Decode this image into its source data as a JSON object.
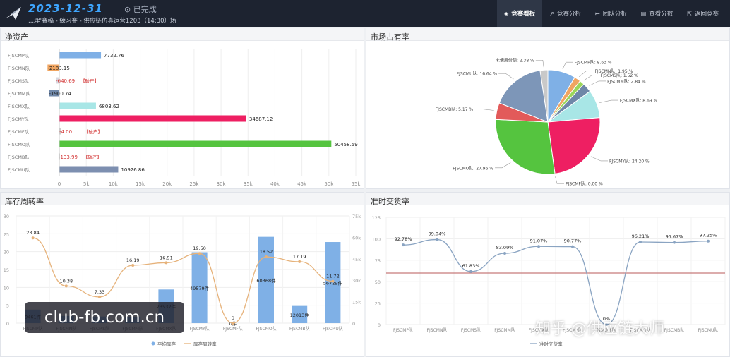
{
  "header": {
    "date": "2023-12-31",
    "status": "已完成",
    "subtitle": "...理'賽稿 - 練习賽 - 供应链仿真运营1203（14:30）场"
  },
  "nav": [
    {
      "label": "竞赛看板",
      "icon": "dashboard-icon",
      "active": true
    },
    {
      "label": "竞赛分析",
      "icon": "trend-icon",
      "active": false
    },
    {
      "label": "团队分析",
      "icon": "team-icon",
      "active": false
    },
    {
      "label": "查看分数",
      "icon": "score-icon",
      "active": false
    },
    {
      "label": "返回竞赛",
      "icon": "back-icon",
      "active": false
    }
  ],
  "panels": {
    "net_assets": "净资产",
    "market_share": "市场占有率",
    "inventory_turnover": "库存周转率",
    "on_time": "准时交货率"
  },
  "chart_data": [
    {
      "type": "bar",
      "orientation": "horizontal",
      "title": "净资产",
      "categories": [
        "FJSCMP队",
        "FJSCMN队",
        "FJSCMS队",
        "FJSCMM队",
        "FJSCMX队",
        "FJSCMY队",
        "FJSCMF队",
        "FJSCMO队",
        "FJSCMB队",
        "FJSCMU队"
      ],
      "values": [
        7732.76,
        -2183.15,
        -640.69,
        -1900.74,
        6803.62,
        34687.12,
        -4.0,
        50458.59,
        -133.99,
        10926.86
      ],
      "value_labels": [
        "7732.76",
        "-2183.15",
        "-640.69",
        "-1900.74",
        "6803.62",
        "34687.12",
        "-4.00",
        "50458.59",
        "-133.99",
        "10926.86"
      ],
      "bankrupt_label": "【破产】",
      "bankrupt": [
        false,
        false,
        true,
        false,
        false,
        false,
        true,
        false,
        true,
        false
      ],
      "colors": [
        "#7fb0e6",
        "#f0a561",
        "#d8d8e0",
        "#6f87a8",
        "#a8e6e6",
        "#ee1f62",
        "#cccccc",
        "#55c43f",
        "#cccccc",
        "#7d8fb0"
      ],
      "xlim": [
        0,
        55000
      ],
      "ticks": [
        "0",
        "5k",
        "10k",
        "15k",
        "20k",
        "25k",
        "30k",
        "35k",
        "40k",
        "45k",
        "50k",
        "55k"
      ]
    },
    {
      "type": "pie",
      "title": "市场占有率",
      "slices": [
        {
          "label": "FJSCMP队: 8.63 %",
          "value": 8.63,
          "color": "#7fb0e6"
        },
        {
          "label": "FJSCMN队: 1.95 %",
          "value": 1.95,
          "color": "#f0a561"
        },
        {
          "label": "FJSCMS队: 1.52 %",
          "value": 1.52,
          "color": "#9bd65a"
        },
        {
          "label": "FJSCMM队: 2.84 %",
          "value": 2.84,
          "color": "#6f87a8"
        },
        {
          "label": "FJSCMX队: 8.69 %",
          "value": 8.69,
          "color": "#a8e6e6"
        },
        {
          "label": "FJSCMY队: 24.20 %",
          "value": 24.2,
          "color": "#ee1f62"
        },
        {
          "label": "FJSCMF队: 0.00 %",
          "value": 0.0,
          "color": "#cccccc"
        },
        {
          "label": "FJSCMO队: 27.96 %",
          "value": 27.96,
          "color": "#55c43f"
        },
        {
          "label": "FJSCMB队: 5.17 %",
          "value": 5.17,
          "color": "#e25a5a"
        },
        {
          "label": "FJSCMU队: 16.64 %",
          "value": 16.64,
          "color": "#7d96b8"
        },
        {
          "label": "未使用份额: 2.38 %",
          "value": 2.38,
          "color": "#c9c9c9"
        }
      ]
    },
    {
      "type": "bar-line",
      "title": "库存周转率",
      "categories": [
        "FJSCMP队",
        "FJSCMN队",
        "FJSCMS队",
        "FJSCMM队",
        "FJSCMX队",
        "FJSCMY队",
        "FJSCMF队",
        "FJSCMO队",
        "FJSCMB队",
        "FJSCMU队"
      ],
      "series": [
        {
          "name": "平均库存",
          "values": [
            9461,
            5000,
            4600,
            4300,
            23532,
            49579,
            0,
            60368,
            12013,
            56729
          ],
          "labels": [
            "9461件",
            "",
            "",
            "",
            "23532件",
            "49579件",
            "0件",
            "60368件",
            "12013件",
            "56729件"
          ],
          "axis": "right"
        },
        {
          "name": "库存周转率",
          "values": [
            23.84,
            10.38,
            7.33,
            16.19,
            16.91,
            19.5,
            0,
            18.52,
            17.19,
            11.72
          ],
          "labels": [
            "23.84",
            "10.38",
            "7.33",
            "16.19",
            "16.91",
            "19.50",
            "0",
            "18.52",
            "17.19",
            "11.72"
          ],
          "axis": "left"
        }
      ],
      "left_ticks": [
        "0",
        "5",
        "10",
        "15",
        "20",
        "25",
        "30"
      ],
      "right_ticks": [
        "0",
        "15k",
        "30k",
        "45k",
        "60k",
        "75k"
      ],
      "left_ylim": [
        0,
        30
      ],
      "right_ylim": [
        0,
        75000
      ]
    },
    {
      "type": "line",
      "title": "准时交货率",
      "categories": [
        "FJSCMP队",
        "FJSCMN队",
        "FJSCMS队",
        "FJSCMM队",
        "FJSCMX队",
        "FJSCMY队",
        "FJSCMF队",
        "FJSCMO队",
        "FJSCMB队",
        "FJSCMU队"
      ],
      "series": [
        {
          "name": "准时交货率",
          "values": [
            92.78,
            99.04,
            61.83,
            83.09,
            91.07,
            90.77,
            0,
            96.21,
            95.67,
            97.25
          ],
          "labels": [
            "92.78%",
            "99.04%",
            "61.83%",
            "83.09%",
            "91.07%",
            "90.77%",
            "0%",
            "96.21%",
            "95.67%",
            "97.25%"
          ]
        }
      ],
      "reference_line": 60,
      "ticks": [
        "0",
        "25",
        "50",
        "75",
        "100",
        "125"
      ],
      "ylim": [
        0,
        125
      ]
    }
  ],
  "watermarks": {
    "left": "club-fb.com.cn",
    "right": "知乎 @供应链大师"
  }
}
